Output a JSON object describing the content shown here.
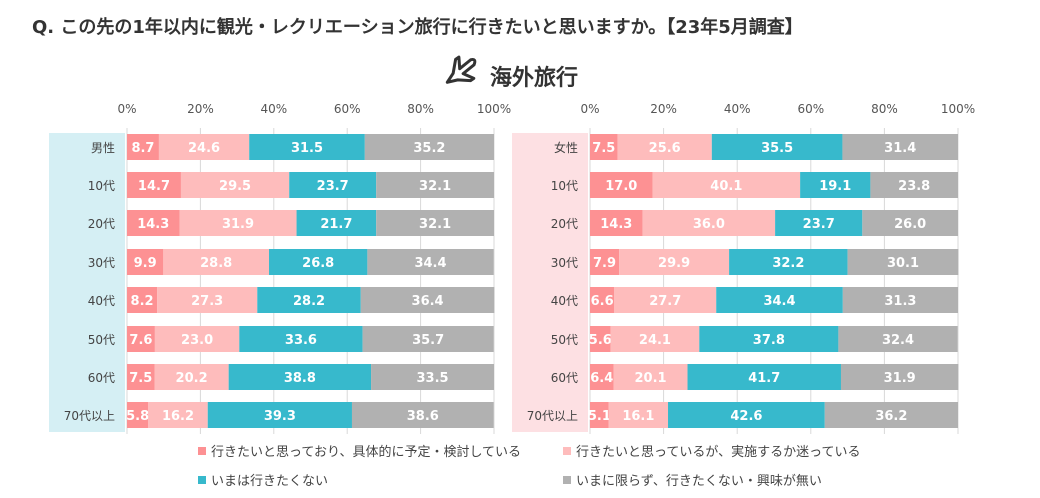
{
  "title": "Q. この先の1年以内に観光・レクリエーション旅行に行きたいと思いますか。【23年5月調査】",
  "subtitle": "海外旅行",
  "subtitle_icon": "airplane-icon",
  "colors": [
    "#fd9193",
    "#febcbc",
    "#37b9cc",
    "#b1b1b1"
  ],
  "legend": [
    "行きたいと思っており、具体的に予定・検討している",
    "行きたいと思っているが、実施するか迷っている",
    "いまは行きたくない",
    "いまに限らず、行きたくない・興味が無い"
  ],
  "chart_data": [
    {
      "type": "bar",
      "orientation": "horizontal-stacked-100",
      "xlim": [
        0,
        100
      ],
      "ticks": [
        "0%",
        "20%",
        "40%",
        "60%",
        "80%",
        "100%"
      ],
      "grid": true,
      "legend_position": "bottom",
      "band_color": "#d5eff4",
      "categories": [
        "男性",
        "10代",
        "20代",
        "30代",
        "40代",
        "50代",
        "60代",
        "70代以上"
      ],
      "series": [
        {
          "name": "行きたいと思っており、具体的に予定・検討している",
          "values": [
            8.7,
            14.7,
            14.3,
            9.9,
            8.2,
            7.6,
            7.5,
            5.8
          ]
        },
        {
          "name": "行きたいと思っているが、実施するか迷っている",
          "values": [
            24.6,
            29.5,
            31.9,
            28.8,
            27.3,
            23.0,
            20.2,
            16.2
          ]
        },
        {
          "name": "いまは行きたくない",
          "values": [
            31.5,
            23.7,
            21.7,
            26.8,
            28.2,
            33.6,
            38.8,
            39.3
          ]
        },
        {
          "name": "いまに限らず、行きたくない・興味が無い",
          "values": [
            35.2,
            32.1,
            32.1,
            34.4,
            36.4,
            35.7,
            33.5,
            38.6
          ]
        }
      ]
    },
    {
      "type": "bar",
      "orientation": "horizontal-stacked-100",
      "xlim": [
        0,
        100
      ],
      "ticks": [
        "0%",
        "20%",
        "40%",
        "60%",
        "80%",
        "100%"
      ],
      "grid": true,
      "legend_position": "bottom",
      "band_color": "#fde0e3",
      "categories": [
        "女性",
        "10代",
        "20代",
        "30代",
        "40代",
        "50代",
        "60代",
        "70代以上"
      ],
      "series": [
        {
          "name": "行きたいと思っており、具体的に予定・検討している",
          "values": [
            7.5,
            17.0,
            14.3,
            7.9,
            6.6,
            5.6,
            6.4,
            5.1
          ]
        },
        {
          "name": "行きたいと思っているが、実施するか迷っている",
          "values": [
            25.6,
            40.1,
            36.0,
            29.9,
            27.7,
            24.1,
            20.1,
            16.1
          ]
        },
        {
          "name": "いまは行きたくない",
          "values": [
            35.5,
            19.1,
            23.7,
            32.2,
            34.4,
            37.8,
            41.7,
            42.6
          ]
        },
        {
          "name": "いまに限らず、行きたくない・興味が無い",
          "values": [
            31.4,
            23.8,
            26.0,
            30.1,
            31.3,
            32.4,
            31.9,
            36.2
          ]
        }
      ]
    }
  ]
}
